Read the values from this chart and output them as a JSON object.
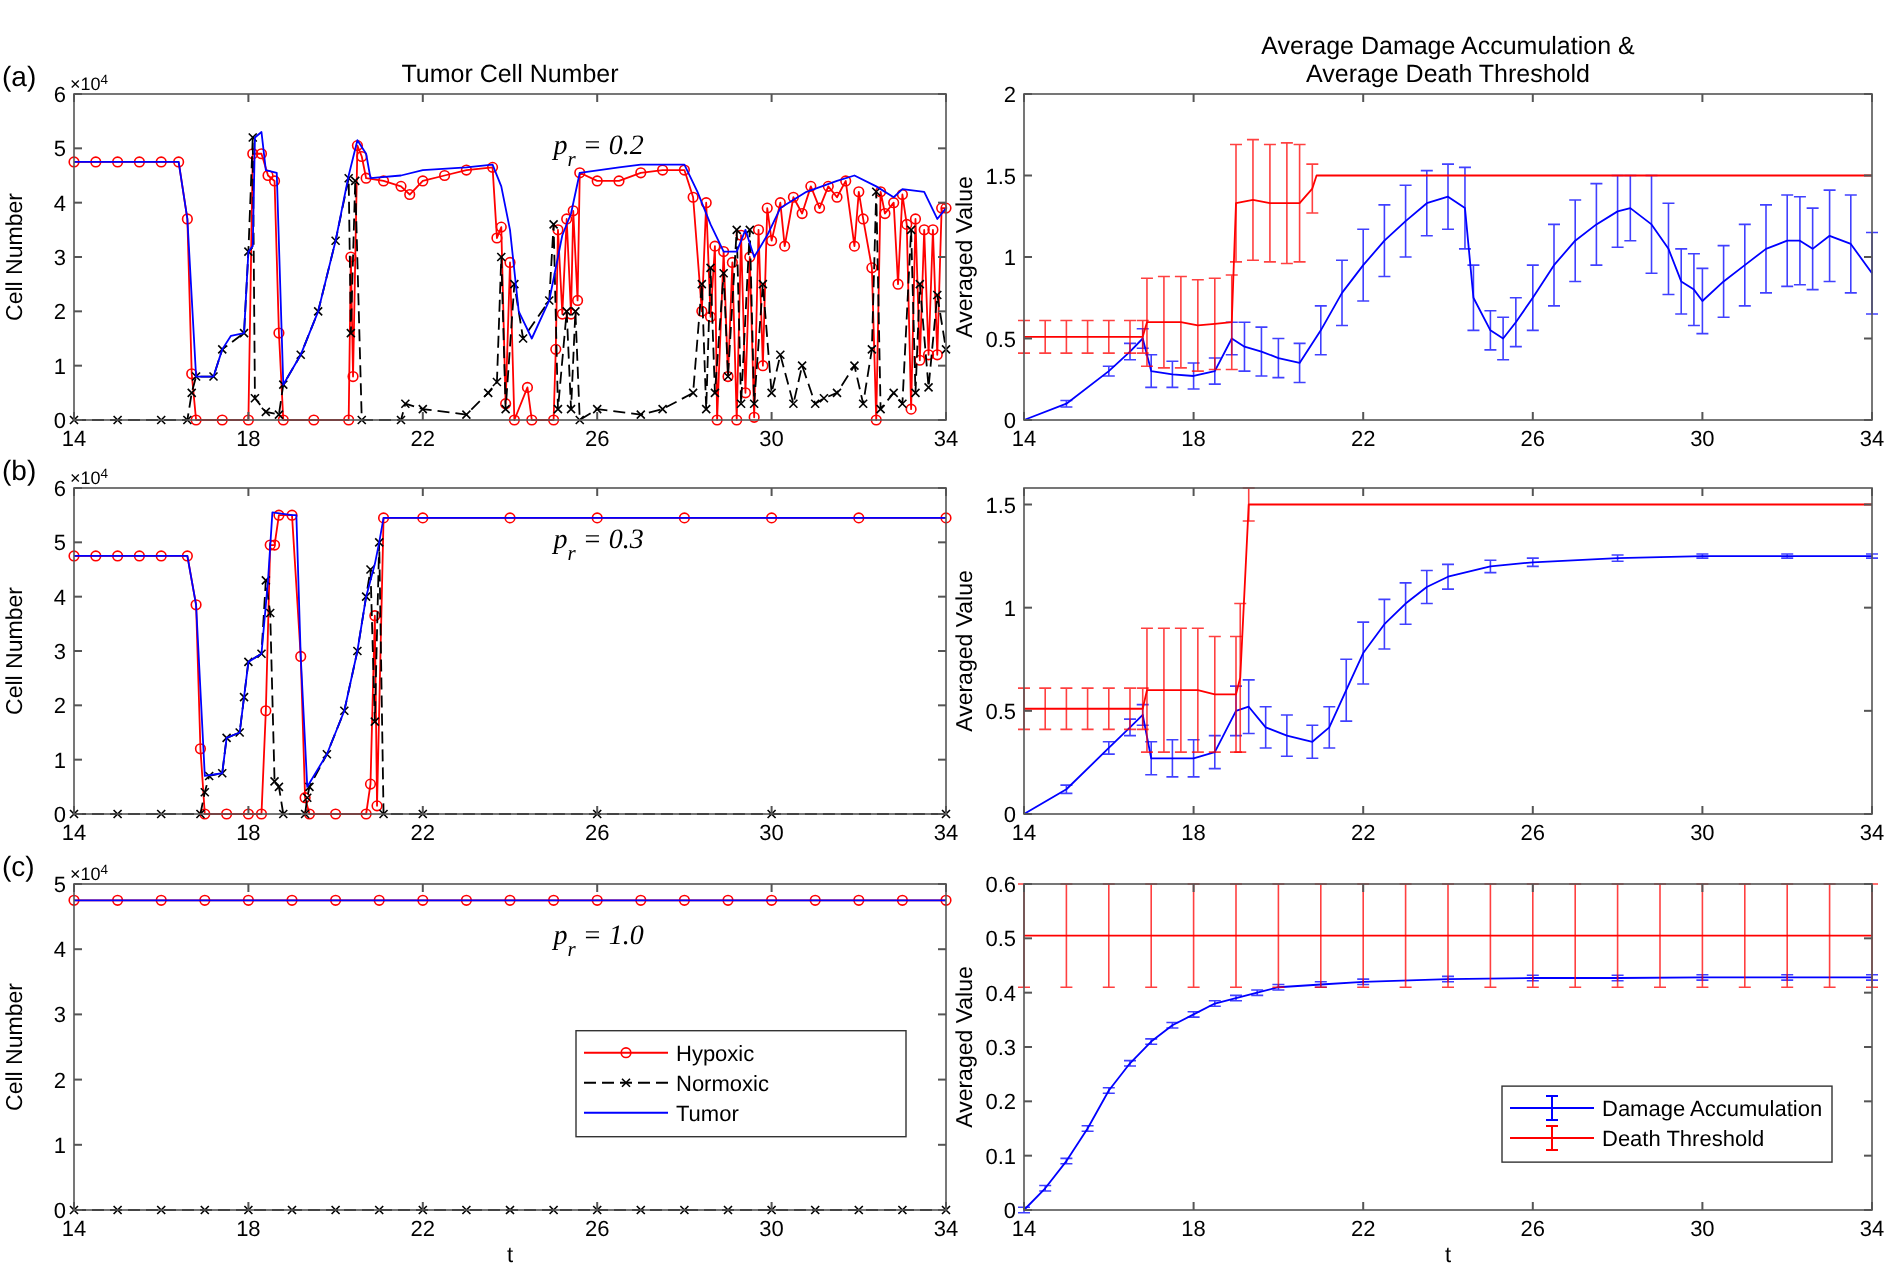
{
  "chart_data": [
    {
      "type": "line",
      "title": "Tumor Cell Number",
      "ylabel": "Cell Number",
      "annotations": [
        "(a)",
        "×10$^{4}$",
        "p$_{r}$ = 0.2"
      ],
      "xlim": [
        14,
        34
      ],
      "xticks": [
        14,
        18,
        22,
        26,
        30,
        34
      ],
      "ylim": [
        0,
        6
      ],
      "yticks": [
        0,
        1,
        2,
        3,
        4,
        5,
        6
      ],
      "series": [
        {
          "color": "#ff0000",
          "marker": "circle",
          "line_style": "solid",
          "x": [
            14,
            14.5,
            15,
            15.5,
            16,
            16.4,
            16.6,
            16.7,
            16.8,
            17.4,
            18,
            18.1,
            18.3,
            18.45,
            18.6,
            18.7,
            18.8,
            19.5,
            20.3,
            20.35,
            20.4,
            20.5,
            20.6,
            20.7,
            21.1,
            21.5,
            21.7,
            22,
            22.5,
            23,
            23.6,
            23.7,
            23.8,
            23.9,
            24,
            24.1,
            24.4,
            24.5,
            25,
            25.05,
            25.1,
            25.2,
            25.3,
            25.4,
            25.45,
            25.55,
            25.6,
            26,
            26.5,
            27,
            27.5,
            28,
            28.2,
            28.4,
            28.5,
            28.6,
            28.7,
            28.75,
            28.9,
            29,
            29.1,
            29.2,
            29.3,
            29.4,
            29.5,
            29.6,
            29.7,
            29.8,
            29.9,
            30,
            30.2,
            30.3,
            30.5,
            30.7,
            30.9,
            31.1,
            31.3,
            31.5,
            31.7,
            31.9,
            32,
            32.1,
            32.3,
            32.4,
            32.5,
            32.6,
            32.8,
            32.9,
            33,
            33.1,
            33.2,
            33.3,
            33.4,
            33.5,
            33.6,
            33.7,
            33.8,
            33.9,
            34
          ],
          "values": [
            4.75,
            4.75,
            4.75,
            4.75,
            4.75,
            4.75,
            3.7,
            0.85,
            0,
            0,
            0,
            4.9,
            4.9,
            4.5,
            4.4,
            1.6,
            0,
            0,
            0,
            3,
            0.8,
            5.05,
            4.85,
            4.45,
            4.4,
            4.3,
            4.15,
            4.4,
            4.5,
            4.6,
            4.65,
            3.35,
            3.55,
            0.3,
            2.9,
            0,
            0.6,
            0,
            0,
            1.3,
            3.5,
            1.95,
            3.7,
            1.95,
            3.85,
            2.2,
            4.55,
            4.4,
            4.4,
            4.55,
            4.6,
            4.6,
            4.1,
            2,
            4,
            1.9,
            3.2,
            0,
            3.1,
            0.8,
            2.9,
            0,
            3.4,
            0.5,
            3,
            0.05,
            3.5,
            1,
            3.9,
            3.3,
            4,
            3.2,
            4.1,
            3.8,
            4.3,
            3.9,
            4.3,
            4.1,
            4.4,
            3.2,
            4.2,
            3.7,
            2.8,
            0,
            4.2,
            3.8,
            4,
            2.5,
            4.15,
            3.6,
            0.2,
            3.7,
            1.1,
            3.5,
            1.2,
            3.5,
            1.2,
            3.9,
            3.9
          ]
        },
        {
          "color": "#000000",
          "marker": "cross",
          "line_style": "dashed",
          "x": [
            14,
            15,
            16,
            16.6,
            16.7,
            16.8,
            17.2,
            17.4,
            17.9,
            18,
            18.1,
            18.15,
            18.4,
            18.7,
            18.8,
            19.2,
            19.6,
            20,
            20.3,
            20.35,
            20.45,
            20.6,
            21.5,
            21.6,
            22,
            23,
            23.5,
            23.7,
            23.8,
            23.9,
            24.1,
            24.3,
            24.9,
            25,
            25.1,
            25.3,
            25.4,
            25.5,
            25.6,
            26,
            27,
            27.5,
            28.2,
            28.4,
            28.5,
            28.6,
            28.7,
            28.9,
            29,
            29.2,
            29.3,
            29.5,
            29.6,
            29.8,
            30,
            30.2,
            30.5,
            30.7,
            31,
            31.2,
            31.5,
            31.9,
            32.1,
            32.3,
            32.4,
            32.5,
            32.8,
            33,
            33.2,
            33.3,
            33.4,
            33.6,
            33.8,
            34
          ],
          "values": [
            0,
            0,
            0,
            0,
            0.5,
            0.8,
            0.8,
            1.3,
            1.6,
            3.1,
            5.2,
            0.4,
            0.15,
            0.1,
            0.65,
            1.2,
            2,
            3.3,
            4.45,
            1.6,
            4.4,
            0,
            0,
            0.3,
            0.2,
            0.1,
            0.5,
            0.7,
            3,
            0.2,
            2.5,
            1.5,
            2.2,
            3.6,
            0.2,
            2,
            0.2,
            2,
            0,
            0.2,
            0.1,
            0.2,
            0.5,
            2.5,
            0.2,
            2.8,
            0.5,
            2.7,
            0.8,
            3.5,
            0.3,
            3.5,
            0.3,
            2.5,
            0.5,
            1.2,
            0.3,
            1,
            0.3,
            0.4,
            0.5,
            1,
            0.3,
            1.3,
            4.2,
            0.2,
            0.5,
            0.3,
            3.5,
            0.5,
            2.5,
            0.6,
            2.3,
            1.3
          ]
        },
        {
          "color": "#0000ff",
          "marker": "none",
          "line_style": "solid",
          "x": [
            14,
            16.4,
            16.6,
            16.8,
            17.2,
            17.4,
            17.6,
            17.9,
            18,
            18.1,
            18.15,
            18.3,
            18.4,
            18.65,
            18.8,
            19.2,
            19.6,
            20,
            20.3,
            20.5,
            20.7,
            20.8,
            21.5,
            22,
            23,
            23.6,
            23.8,
            24,
            24.2,
            24.5,
            24.9,
            25.2,
            25.4,
            25.6,
            26.5,
            27,
            28,
            28.3,
            28.6,
            28.9,
            29.2,
            29.4,
            29.6,
            29.9,
            30.2,
            30.8,
            31.5,
            31.9,
            32.4,
            32.8,
            33,
            33.5,
            33.8,
            34
          ],
          "values": [
            4.75,
            4.75,
            3.7,
            0.8,
            0.8,
            1.3,
            1.55,
            1.6,
            3.1,
            3.2,
            5.2,
            5.3,
            4.6,
            4.55,
            0.65,
            1.2,
            2,
            3.3,
            4.5,
            5.15,
            4.9,
            4.45,
            4.5,
            4.6,
            4.65,
            4.7,
            4.3,
            3.5,
            2,
            1.5,
            2.2,
            3.4,
            3.8,
            4.55,
            4.65,
            4.7,
            4.7,
            4.2,
            3.6,
            3.1,
            3.1,
            3.5,
            3,
            3.4,
            3.9,
            4.2,
            4.4,
            4.5,
            4.3,
            4.1,
            4.25,
            4.2,
            3.7,
            3.9
          ]
        }
      ]
    },
    {
      "type": "line",
      "title": "Average Damage Accumulation &\nAverage Death Threshold",
      "ylabel": "Averaged Value",
      "xlim": [
        14,
        34
      ],
      "xticks": [
        14,
        18,
        22,
        26,
        30,
        34
      ],
      "ylim": [
        0,
        2
      ],
      "yticks": [
        0,
        0.5,
        1,
        1.5,
        2
      ],
      "series": [
        {
          "color": "#0000ff",
          "x": [
            14,
            15,
            16,
            16.5,
            16.8,
            17,
            17.5,
            18,
            18.5,
            18.9,
            19.2,
            19.6,
            20,
            20.5,
            21,
            21.5,
            22,
            22.5,
            23,
            23.5,
            24,
            24.4,
            24.6,
            25,
            25.3,
            25.6,
            26,
            26.5,
            27,
            27.5,
            28,
            28.3,
            28.8,
            29.2,
            29.5,
            29.8,
            30,
            30.5,
            31,
            31.5,
            32,
            32.3,
            32.6,
            33,
            33.5,
            34
          ],
          "values": [
            0,
            0.1,
            0.3,
            0.42,
            0.5,
            0.3,
            0.28,
            0.27,
            0.3,
            0.5,
            0.45,
            0.42,
            0.38,
            0.35,
            0.55,
            0.78,
            0.95,
            1.1,
            1.22,
            1.33,
            1.37,
            1.3,
            0.75,
            0.55,
            0.5,
            0.6,
            0.75,
            0.95,
            1.1,
            1.2,
            1.28,
            1.3,
            1.2,
            1.05,
            0.85,
            0.8,
            0.73,
            0.85,
            0.95,
            1.05,
            1.1,
            1.1,
            1.05,
            1.13,
            1.08,
            0.9
          ],
          "errors": [
            null,
            0.02,
            0.03,
            0.05,
            0.06,
            0.1,
            0.08,
            0.08,
            0.08,
            0.1,
            0.15,
            0.15,
            0.12,
            0.12,
            0.15,
            0.2,
            0.22,
            0.22,
            0.22,
            0.2,
            0.2,
            0.25,
            0.2,
            0.12,
            0.13,
            0.15,
            0.2,
            0.25,
            0.25,
            0.25,
            0.22,
            0.2,
            0.3,
            0.28,
            0.2,
            0.22,
            0.2,
            0.22,
            0.25,
            0.27,
            0.28,
            0.27,
            0.25,
            0.28,
            0.3,
            0.25
          ]
        },
        {
          "color": "#ff0000",
          "x": [
            14,
            14.5,
            15,
            15.5,
            16,
            16.5,
            16.8,
            16.9,
            17.3,
            17.7,
            18.1,
            18.5,
            18.9,
            19,
            19.4,
            19.8,
            20.2,
            20.5,
            20.8,
            20.9,
            34
          ],
          "values": [
            0.51,
            0.51,
            0.51,
            0.51,
            0.51,
            0.51,
            0.51,
            0.6,
            0.6,
            0.6,
            0.58,
            0.59,
            0.6,
            1.33,
            1.35,
            1.33,
            1.33,
            1.33,
            1.42,
            1.5,
            1.5
          ],
          "errors": [
            0.1,
            0.1,
            0.1,
            0.1,
            0.1,
            0.1,
            0.1,
            0.27,
            0.28,
            0.28,
            0.28,
            0.28,
            0.29,
            0.36,
            0.37,
            0.36,
            0.37,
            0.36,
            0.15,
            null,
            null
          ]
        }
      ]
    },
    {
      "type": "line",
      "ylabel": "Cell Number",
      "annotations": [
        "(b)",
        "×10$^{4}$",
        "p$_{r}$ = 0.3"
      ],
      "xlim": [
        14,
        34
      ],
      "xticks": [
        14,
        18,
        22,
        26,
        30,
        34
      ],
      "ylim": [
        0,
        6
      ],
      "yticks": [
        0,
        1,
        2,
        3,
        4,
        5,
        6
      ],
      "series": [
        {
          "color": "#ff0000",
          "marker": "circle",
          "line_style": "solid",
          "x": [
            14,
            14.5,
            15,
            15.5,
            16,
            16.6,
            16.8,
            16.9,
            17,
            17.5,
            18,
            18.3,
            18.4,
            18.5,
            18.6,
            18.7,
            19,
            19.2,
            19.3,
            19.4,
            20,
            20.7,
            20.8,
            20.9,
            20.95,
            21.1,
            22,
            24,
            26,
            28,
            30,
            32,
            34
          ],
          "values": [
            4.75,
            4.75,
            4.75,
            4.75,
            4.75,
            4.75,
            3.85,
            1.2,
            0,
            0,
            0,
            0,
            1.9,
            4.95,
            4.95,
            5.5,
            5.5,
            2.9,
            0.3,
            0,
            0,
            0,
            0.55,
            3.65,
            0.15,
            5.45,
            5.45,
            5.45,
            5.45,
            5.45,
            5.45,
            5.45,
            5.45
          ]
        },
        {
          "color": "#000000",
          "marker": "cross",
          "line_style": "dashed",
          "x": [
            14,
            15,
            16,
            16.9,
            17,
            17.1,
            17.4,
            17.5,
            17.8,
            17.9,
            18,
            18.3,
            18.4,
            18.5,
            18.6,
            18.7,
            18.8,
            19.3,
            19.35,
            19.4,
            19.8,
            20.2,
            20.5,
            20.7,
            20.8,
            20.9,
            21,
            21.1,
            22,
            26,
            30,
            34
          ],
          "values": [
            0,
            0,
            0,
            0,
            0.4,
            0.7,
            0.75,
            1.4,
            1.5,
            2.15,
            2.8,
            2.95,
            4.3,
            3.7,
            0.6,
            0.5,
            0,
            0,
            0.3,
            0.5,
            1.1,
            1.9,
            3,
            4,
            4.5,
            1.7,
            5,
            0,
            0,
            0,
            0,
            0
          ]
        },
        {
          "color": "#0000ff",
          "marker": "none",
          "line_style": "solid",
          "x": [
            14,
            16.6,
            16.8,
            17,
            17.4,
            17.5,
            17.8,
            17.9,
            18,
            18.3,
            18.45,
            18.55,
            19,
            19.1,
            19.2,
            19.35,
            19.8,
            20.2,
            20.5,
            20.7,
            20.9,
            21,
            21.1,
            34
          ],
          "values": [
            4.75,
            4.75,
            3.85,
            0.7,
            0.75,
            1.4,
            1.5,
            2.15,
            2.8,
            2.95,
            4.3,
            5.55,
            5.5,
            5.5,
            2.9,
            0.5,
            1.1,
            1.9,
            3,
            4,
            4.6,
            5,
            5.45,
            5.45
          ]
        }
      ]
    },
    {
      "type": "line",
      "ylabel": "Averaged Value",
      "xlim": [
        14,
        34
      ],
      "xticks": [
        14,
        18,
        22,
        26,
        30,
        34
      ],
      "ylim": [
        0,
        1.58
      ],
      "yticks": [
        0,
        0.5,
        1,
        1.5
      ],
      "series": [
        {
          "color": "#0000ff",
          "x": [
            14,
            15,
            16,
            16.5,
            16.8,
            17,
            17.5,
            18,
            18.5,
            19,
            19.3,
            19.7,
            20.2,
            20.8,
            21.2,
            21.6,
            22,
            22.5,
            23,
            23.5,
            24,
            25,
            26,
            28,
            30,
            32,
            34
          ],
          "values": [
            0,
            0.12,
            0.32,
            0.42,
            0.48,
            0.27,
            0.27,
            0.27,
            0.3,
            0.5,
            0.52,
            0.42,
            0.38,
            0.35,
            0.42,
            0.6,
            0.78,
            0.92,
            1.02,
            1.1,
            1.15,
            1.2,
            1.22,
            1.24,
            1.25,
            1.25,
            1.25
          ],
          "errors": [
            null,
            0.02,
            0.03,
            0.04,
            0.05,
            0.08,
            0.09,
            0.09,
            0.08,
            0.12,
            0.13,
            0.1,
            0.1,
            0.08,
            0.1,
            0.15,
            0.15,
            0.12,
            0.1,
            0.08,
            0.06,
            0.03,
            0.02,
            0.015,
            0.01,
            0.01,
            0.01
          ]
        },
        {
          "color": "#ff0000",
          "x": [
            14,
            14.5,
            15,
            15.5,
            16,
            16.5,
            16.8,
            16.9,
            17.3,
            17.7,
            18.1,
            18.5,
            19,
            19.1,
            19.3,
            19.35,
            34
          ],
          "values": [
            0.51,
            0.51,
            0.51,
            0.51,
            0.51,
            0.51,
            0.51,
            0.6,
            0.6,
            0.6,
            0.6,
            0.58,
            0.58,
            0.66,
            1.5,
            1.5,
            1.5
          ],
          "errors": [
            0.1,
            0.1,
            0.1,
            0.1,
            0.1,
            0.1,
            0.1,
            0.3,
            0.3,
            0.3,
            0.3,
            0.28,
            0.28,
            0.36,
            0.08,
            null,
            null
          ]
        }
      ]
    },
    {
      "type": "line",
      "ylabel": "Cell Number",
      "xlabel": "t",
      "annotations": [
        "(c)",
        "×10$^{4}$",
        "p$_{r}$ = 1.0"
      ],
      "xlim": [
        14,
        34
      ],
      "xticks": [
        14,
        18,
        22,
        26,
        30,
        34
      ],
      "ylim": [
        0,
        5
      ],
      "yticks": [
        0,
        1,
        2,
        3,
        4,
        5
      ],
      "legend": "right",
      "series": [
        {
          "name": "Hypoxic",
          "color": "#ff0000",
          "marker": "circle",
          "line_style": "solid",
          "x": [
            14,
            15,
            16,
            17,
            18,
            19,
            20,
            21,
            22,
            23,
            24,
            25,
            26,
            27,
            28,
            29,
            30,
            31,
            32,
            33,
            34
          ],
          "values": [
            4.75,
            4.75,
            4.75,
            4.75,
            4.75,
            4.75,
            4.75,
            4.75,
            4.75,
            4.75,
            4.75,
            4.75,
            4.75,
            4.75,
            4.75,
            4.75,
            4.75,
            4.75,
            4.75,
            4.75,
            4.75
          ]
        },
        {
          "name": "Normoxic",
          "color": "#000000",
          "marker": "cross",
          "line_style": "dashed",
          "x": [
            14,
            15,
            16,
            17,
            18,
            19,
            20,
            21,
            22,
            23,
            24,
            25,
            26,
            27,
            28,
            29,
            30,
            31,
            32,
            33,
            34
          ],
          "values": [
            0,
            0,
            0,
            0,
            0,
            0,
            0,
            0,
            0,
            0,
            0,
            0,
            0,
            0,
            0,
            0,
            0,
            0,
            0,
            0,
            0
          ]
        },
        {
          "name": "Tumor",
          "color": "#0000ff",
          "marker": "none",
          "line_style": "solid",
          "x": [
            14,
            34
          ],
          "values": [
            4.75,
            4.75
          ]
        }
      ]
    },
    {
      "type": "line",
      "ylabel": "Averaged Value",
      "xlabel": "t",
      "xlim": [
        14,
        34
      ],
      "xticks": [
        14,
        18,
        22,
        26,
        30,
        34
      ],
      "ylim": [
        0,
        0.6
      ],
      "yticks": [
        0,
        0.1,
        0.2,
        0.3,
        0.4,
        0.5,
        0.6
      ],
      "legend": "bottom right",
      "series": [
        {
          "name": "Damage Accumulation",
          "color": "#0000ff",
          "x": [
            14,
            14.5,
            15,
            15.5,
            16,
            16.5,
            17,
            17.5,
            18,
            18.5,
            19,
            19.5,
            20,
            21,
            22,
            24,
            26,
            28,
            30,
            32,
            34
          ],
          "values": [
            0,
            0.04,
            0.09,
            0.15,
            0.22,
            0.27,
            0.31,
            0.34,
            0.36,
            0.38,
            0.39,
            0.4,
            0.41,
            0.415,
            0.42,
            0.425,
            0.427,
            0.427,
            0.428,
            0.428,
            0.428
          ],
          "errors": [
            0.005,
            0.005,
            0.005,
            0.005,
            0.005,
            0.005,
            0.005,
            0.005,
            0.005,
            0.005,
            0.005,
            0.005,
            0.005,
            0.005,
            0.005,
            0.005,
            0.005,
            0.005,
            0.005,
            0.005,
            0.005
          ]
        },
        {
          "name": "Death Threshold",
          "color": "#ff0000",
          "x": [
            14,
            15,
            16,
            17,
            18,
            19,
            20,
            21,
            22,
            23,
            24,
            25,
            26,
            27,
            28,
            29,
            30,
            31,
            32,
            33,
            34
          ],
          "values": [
            0.505,
            0.505,
            0.505,
            0.505,
            0.505,
            0.505,
            0.505,
            0.505,
            0.505,
            0.505,
            0.505,
            0.505,
            0.505,
            0.505,
            0.505,
            0.505,
            0.505,
            0.505,
            0.505,
            0.505,
            0.505
          ],
          "errors": [
            0.095,
            0.095,
            0.095,
            0.095,
            0.095,
            0.095,
            0.095,
            0.095,
            0.095,
            0.095,
            0.095,
            0.095,
            0.095,
            0.095,
            0.095,
            0.095,
            0.095,
            0.095,
            0.095,
            0.095,
            0.095
          ]
        }
      ]
    }
  ]
}
